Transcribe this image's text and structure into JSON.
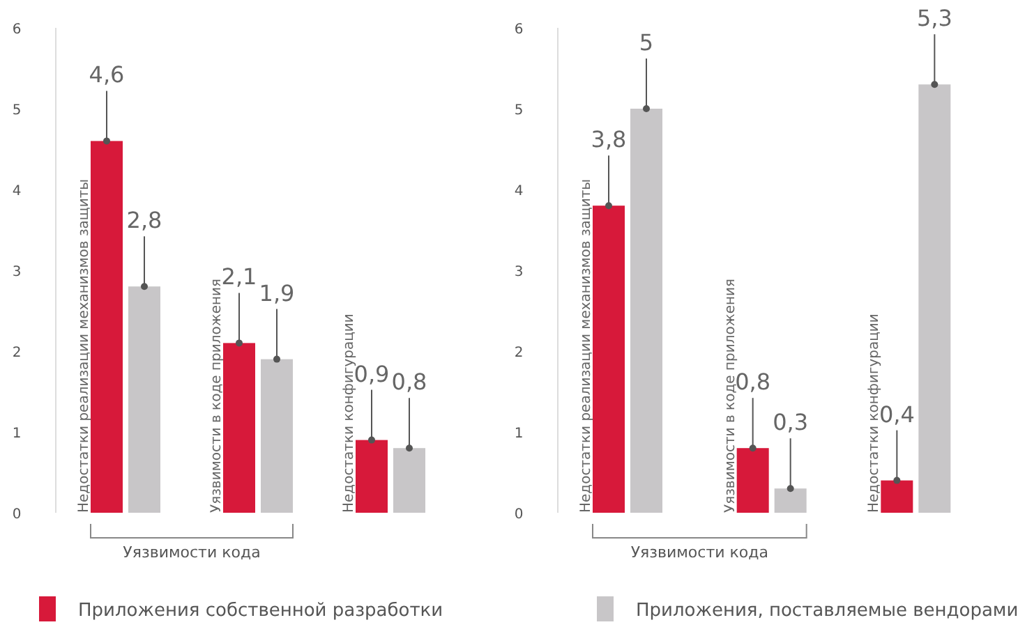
{
  "chart_data": [
    {
      "type": "bar",
      "categories": [
        "Недостатки реализации механизмов защиты",
        "Уязвимости в коде приложения",
        "Недостатки конфигурации"
      ],
      "series": [
        {
          "name": "Приложения собственной разработки",
          "color": "#d7193a",
          "values": [
            4.6,
            2.1,
            0.9
          ],
          "value_labels": [
            "4,6",
            "2,1",
            "0,9"
          ]
        },
        {
          "name": "Приложения, поставляемые вендорами",
          "color": "#c8c6c8",
          "values": [
            2.8,
            1.9,
            0.8
          ],
          "value_labels": [
            "2,8",
            "1,9",
            "0,8"
          ]
        }
      ],
      "ylim": [
        0,
        6
      ],
      "yticks": [
        0,
        1,
        2,
        3,
        4,
        5,
        6
      ],
      "legend": "bottom",
      "annotations": [
        "Уязвимости кода"
      ]
    },
    {
      "type": "bar",
      "categories": [
        "Недостатки реализации механизмов защиты",
        "Уязвимости в коде приложения",
        "Недостатки конфигурации"
      ],
      "series": [
        {
          "color": "#d7193a",
          "values": [
            3.8,
            0.8,
            0.4
          ],
          "value_labels": [
            "3,8",
            "0,8",
            "0,4"
          ]
        },
        {
          "color": "#c8c6c8",
          "values": [
            5,
            0.3,
            5.3
          ],
          "value_labels": [
            "5",
            "0,3",
            "5,3"
          ]
        }
      ],
      "ylim": [
        0,
        6
      ],
      "yticks": [
        0,
        1,
        2,
        3,
        4,
        5,
        6
      ],
      "annotations": [
        "Уязвимости кода"
      ]
    }
  ]
}
